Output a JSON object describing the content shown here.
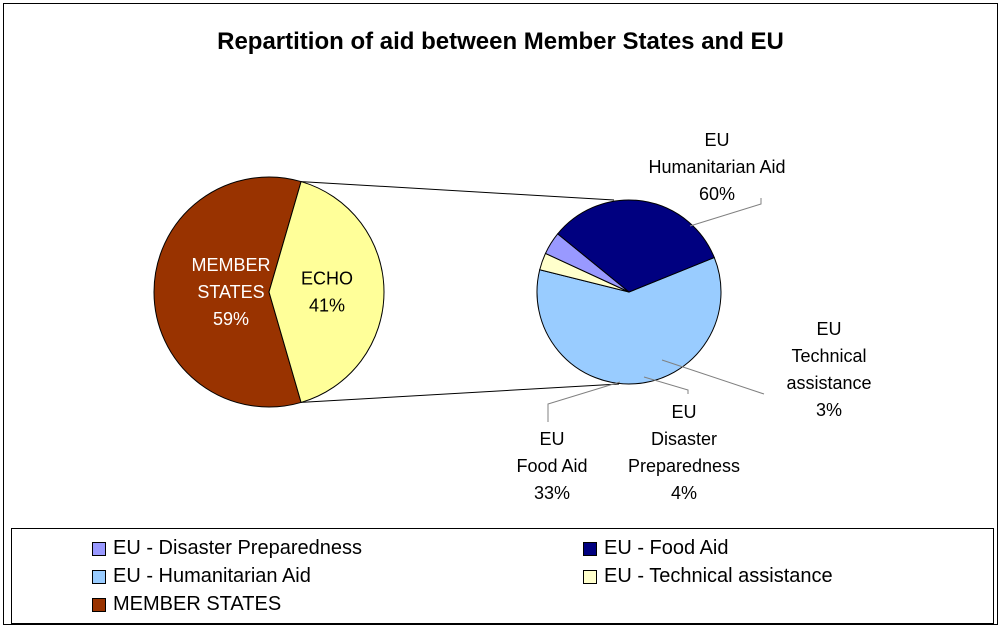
{
  "chart_data": [
    {
      "type": "pie",
      "title": "Repartition of aid between Member States and EU",
      "slices": [
        {
          "label_lines": [
            "MEMBER",
            "STATES"
          ],
          "percent_label": "59%",
          "value": 59,
          "color": "#993300",
          "text_color": "#ffffff"
        },
        {
          "label_lines": [
            "ECHO"
          ],
          "percent_label": "41%",
          "value": 41,
          "color": "#FFFF99",
          "text_color": "#000000"
        }
      ]
    },
    {
      "type": "pie",
      "slices": [
        {
          "label_lines": [
            "EU",
            "Humanitarian Aid"
          ],
          "percent_label": "60%",
          "value": 60,
          "color": "#99CCFF"
        },
        {
          "label_lines": [
            "EU",
            "Technical",
            "assistance"
          ],
          "percent_label": "3%",
          "value": 3,
          "color": "#FFFFCC"
        },
        {
          "label_lines": [
            "EU",
            "Disaster",
            "Preparedness"
          ],
          "percent_label": "4%",
          "value": 4,
          "color": "#9999FF"
        },
        {
          "label_lines": [
            "EU",
            "Food Aid"
          ],
          "percent_label": "33%",
          "value": 33,
          "color": "#000080"
        }
      ]
    }
  ],
  "legend": {
    "items": [
      {
        "label": "EU - Disaster Preparedness",
        "color": "#9999FF"
      },
      {
        "label": "EU - Food Aid",
        "color": "#000080"
      },
      {
        "label": "EU - Humanitarian Aid",
        "color": "#99CCFF"
      },
      {
        "label": "EU - Technical assistance",
        "color": "#FFFFCC"
      },
      {
        "label": "MEMBER STATES",
        "color": "#993300"
      }
    ]
  }
}
